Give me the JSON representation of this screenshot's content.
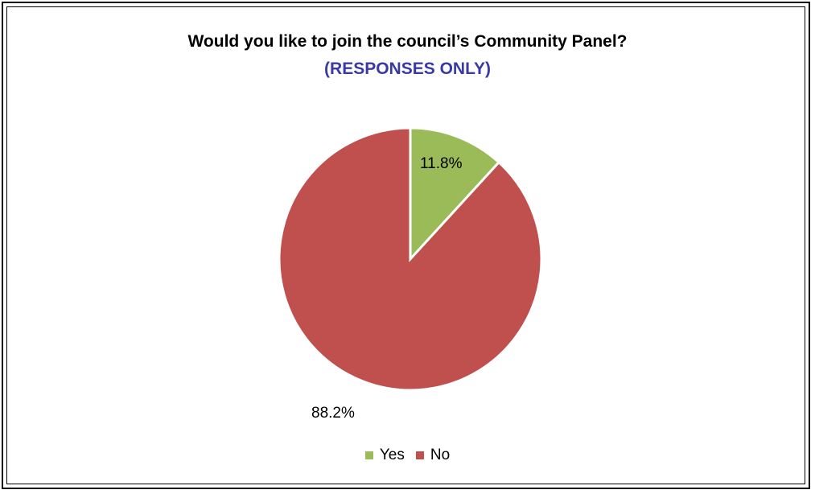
{
  "chart_data": {
    "type": "pie",
    "title": "Would you like to join the council’s Community Panel?",
    "subtitle": "(RESPONSES ONLY)",
    "slices": [
      {
        "label": "Yes",
        "value": 11.8,
        "display": "11.8%",
        "color": "#9bbb59"
      },
      {
        "label": "No",
        "value": 88.2,
        "display": "88.2%",
        "color": "#c0504d"
      }
    ],
    "legend": {
      "placement": "bottom",
      "entries": [
        "Yes",
        "No"
      ]
    }
  }
}
